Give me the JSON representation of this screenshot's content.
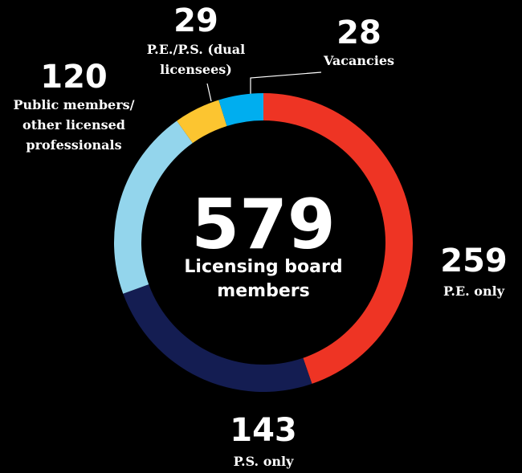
{
  "chart_data": {
    "type": "donut",
    "center_value": 579,
    "center_label": "Licensing board members",
    "categories": [
      "P.E. only",
      "P.S. only",
      "Public members/ other licensed professionals",
      "P.E./P.S. (dual licensees)",
      "Vacancies"
    ],
    "values": [
      259,
      143,
      120,
      29,
      28
    ],
    "colors": [
      "#ee3424",
      "#141d52",
      "#93d5ec",
      "#fcc530",
      "#00aeef"
    ]
  }
}
